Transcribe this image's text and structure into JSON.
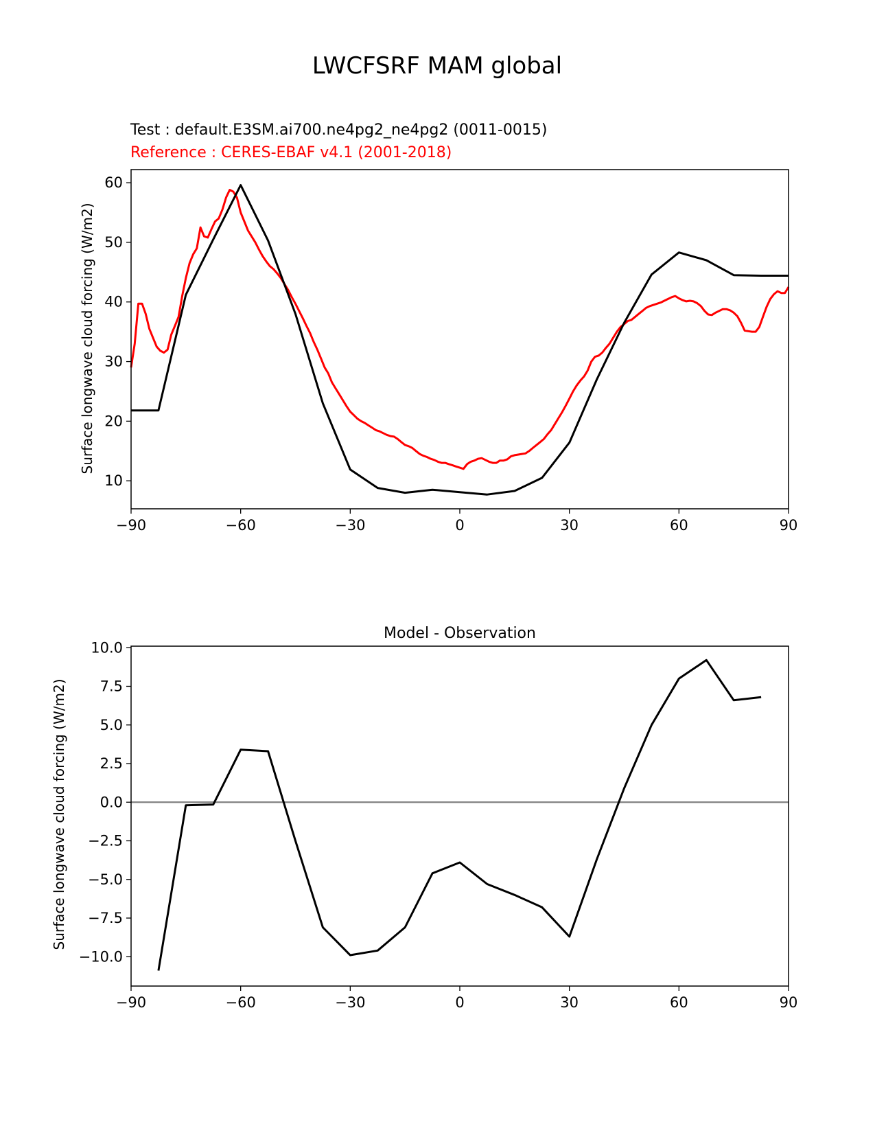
{
  "figure": {
    "title": "LWCFSRF MAM global"
  },
  "colors": {
    "test": "#000000",
    "reference": "#ff0000",
    "zero_line": "#808080",
    "axes": "#000000"
  },
  "chart_data": [
    {
      "type": "line",
      "test_label": "Test : default.E3SM.ai700.ne4pg2_ne4pg2 (0011-0015)",
      "reference_label": "Reference : CERES-EBAF v4.1 (2001-2018)",
      "xlabel": "",
      "ylabel": "Surface longwave cloud forcing (W/m2)",
      "xlim": [
        -90,
        90
      ],
      "ylim": [
        5.3,
        62.2
      ],
      "xticks": [
        -90,
        -60,
        -30,
        0,
        30,
        60,
        90
      ],
      "xtick_labels": [
        "−90",
        "−60",
        "−30",
        "0",
        "30",
        "60",
        "90"
      ],
      "yticks": [
        10,
        20,
        30,
        40,
        50,
        60
      ],
      "ytick_labels": [
        "10",
        "20",
        "30",
        "40",
        "50",
        "60"
      ],
      "series": [
        {
          "key": "test",
          "x": [
            -90,
            -82.5,
            -75,
            -67.5,
            -60,
            -52.5,
            -45,
            -37.5,
            -30,
            -22.5,
            -15,
            -7.5,
            0,
            7.5,
            15,
            22.5,
            30,
            37.5,
            45,
            52.5,
            60,
            67.5,
            75,
            82.5,
            90
          ],
          "y": [
            21.8,
            21.8,
            41.2,
            50.5,
            59.6,
            50.3,
            38.0,
            23.0,
            11.9,
            8.8,
            8.0,
            8.5,
            8.1,
            7.7,
            8.3,
            10.5,
            16.4,
            27.0,
            36.5,
            44.6,
            48.3,
            47.0,
            44.5,
            44.4,
            44.4
          ]
        },
        {
          "key": "reference",
          "x": [
            -90,
            -89,
            -88,
            -87,
            -86,
            -85,
            -84,
            -83,
            -82,
            -81,
            -80,
            -79,
            -78,
            -77,
            -76,
            -75,
            -74,
            -73,
            -72,
            -71,
            -70,
            -69,
            -68,
            -67,
            -66,
            -65,
            -64,
            -63,
            -62,
            -61,
            -60,
            -59,
            -58,
            -57,
            -56,
            -55,
            -54,
            -53,
            -52,
            -51,
            -50,
            -49,
            -48,
            -47,
            -46,
            -45,
            -44,
            -43,
            -42,
            -41,
            -40,
            -39,
            -38,
            -37,
            -36,
            -35,
            -34,
            -33,
            -32,
            -31,
            -30,
            -29,
            -28,
            -27,
            -26,
            -25,
            -24,
            -23,
            -22,
            -21,
            -20,
            -19,
            -18,
            -17,
            -16,
            -15,
            -14,
            -13,
            -12,
            -11,
            -10,
            -9,
            -8,
            -7,
            -6,
            -5,
            -4,
            -3,
            -2,
            -1,
            0,
            1,
            2,
            3,
            4,
            5,
            6,
            7,
            8,
            9,
            10,
            11,
            12,
            13,
            14,
            15,
            16,
            17,
            18,
            19,
            20,
            21,
            22,
            23,
            24,
            25,
            26,
            27,
            28,
            29,
            30,
            31,
            32,
            33,
            34,
            35,
            36,
            37,
            38,
            39,
            40,
            41,
            42,
            43,
            44,
            45,
            46,
            47,
            48,
            49,
            50,
            51,
            52,
            53,
            54,
            55,
            56,
            57,
            58,
            59,
            60,
            61,
            62,
            63,
            64,
            65,
            66,
            67,
            68,
            69,
            70,
            71,
            72,
            73,
            74,
            75,
            76,
            77,
            78,
            79,
            80,
            81,
            82,
            83,
            84,
            85,
            86,
            87,
            88,
            89,
            90
          ],
          "y": [
            29.0,
            33.0,
            39.7,
            39.7,
            38.0,
            35.5,
            34.0,
            32.5,
            31.8,
            31.5,
            32.0,
            34.5,
            36.0,
            37.5,
            41.0,
            44.0,
            46.5,
            48.0,
            49.0,
            52.5,
            51.0,
            50.8,
            52.2,
            53.5,
            54.0,
            55.5,
            57.5,
            58.8,
            58.5,
            57.5,
            55.0,
            53.5,
            52.0,
            51.0,
            50.0,
            48.8,
            47.7,
            46.8,
            46.0,
            45.5,
            44.8,
            44.0,
            43.0,
            42.0,
            40.8,
            39.7,
            38.5,
            37.3,
            36.0,
            34.8,
            33.3,
            32.0,
            30.5,
            29.0,
            28.0,
            26.5,
            25.5,
            24.5,
            23.5,
            22.5,
            21.6,
            21.0,
            20.4,
            20.0,
            19.7,
            19.3,
            18.9,
            18.5,
            18.3,
            18.0,
            17.7,
            17.5,
            17.4,
            17.0,
            16.5,
            16.0,
            15.8,
            15.5,
            15.0,
            14.5,
            14.2,
            14.0,
            13.7,
            13.5,
            13.2,
            13.0,
            13.0,
            12.8,
            12.6,
            12.4,
            12.2,
            12.0,
            12.8,
            13.2,
            13.4,
            13.7,
            13.8,
            13.5,
            13.2,
            13.0,
            13.0,
            13.4,
            13.4,
            13.6,
            14.1,
            14.3,
            14.4,
            14.5,
            14.6,
            15.0,
            15.5,
            16.0,
            16.5,
            17.0,
            17.8,
            18.5,
            19.5,
            20.5,
            21.5,
            22.6,
            23.8,
            25.0,
            26.0,
            26.8,
            27.5,
            28.5,
            30.0,
            30.8,
            31.0,
            31.5,
            32.3,
            33.0,
            34.0,
            35.0,
            35.8,
            36.3,
            36.8,
            37.0,
            37.5,
            38.0,
            38.5,
            39.0,
            39.3,
            39.5,
            39.7,
            39.9,
            40.2,
            40.5,
            40.8,
            41.0,
            40.6,
            40.3,
            40.1,
            40.2,
            40.1,
            39.8,
            39.3,
            38.5,
            37.9,
            37.8,
            38.2,
            38.5,
            38.8,
            38.8,
            38.6,
            38.2,
            37.6,
            36.5,
            35.2,
            35.1,
            35.0,
            35.0,
            35.8,
            37.5,
            39.2,
            40.5,
            41.3,
            41.8,
            41.5,
            41.5,
            42.5
          ]
        }
      ]
    },
    {
      "type": "line",
      "title": "Model - Observation",
      "xlabel": "",
      "ylabel": "Surface longwave cloud forcing (W/m2)",
      "xlim": [
        -90,
        90
      ],
      "ylim": [
        -11.9,
        10.1
      ],
      "xticks": [
        -90,
        -60,
        -30,
        0,
        30,
        60,
        90
      ],
      "xtick_labels": [
        "−90",
        "−60",
        "−30",
        "0",
        "30",
        "60",
        "90"
      ],
      "yticks": [
        -10,
        -7.5,
        -5,
        -2.5,
        0,
        2.5,
        5,
        7.5,
        10
      ],
      "ytick_labels": [
        "−10.0",
        "−7.5",
        "−5.0",
        "−2.5",
        "0.0",
        "2.5",
        "5.0",
        "7.5",
        "10.0"
      ],
      "zero_line": 0,
      "series": [
        {
          "key": "difference",
          "x": [
            -82.5,
            -75,
            -67.5,
            -60,
            -52.5,
            -45,
            -37.5,
            -30,
            -22.5,
            -15,
            -7.5,
            0,
            7.5,
            15,
            22.5,
            30,
            37.5,
            45,
            52.5,
            60,
            67.5,
            75,
            82.5
          ],
          "y": [
            -10.9,
            -0.2,
            -0.15,
            3.4,
            3.3,
            -2.5,
            -8.1,
            -9.9,
            -9.6,
            -8.1,
            -4.6,
            -3.9,
            -5.3,
            -6.0,
            -6.8,
            -8.7,
            -3.7,
            0.9,
            5.0,
            8.0,
            9.2,
            6.6,
            6.8
          ]
        }
      ]
    }
  ]
}
